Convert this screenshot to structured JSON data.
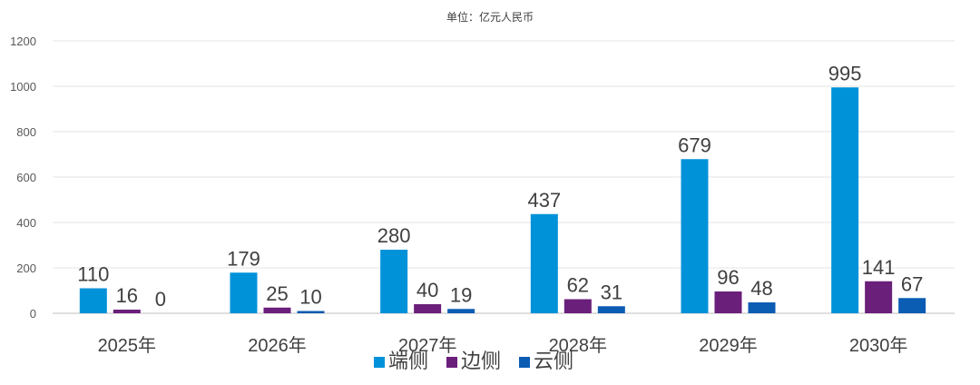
{
  "chart_data": {
    "type": "bar",
    "subtitle": "单位：亿元人民币",
    "categories": [
      "2025年",
      "2026年",
      "2027年",
      "2028年",
      "2029年",
      "2030年"
    ],
    "series": [
      {
        "name": "端侧",
        "color": "#0092d9",
        "values": [
          110,
          179,
          280,
          437,
          679,
          995
        ]
      },
      {
        "name": "边侧",
        "color": "#6a1f7a",
        "values": [
          16,
          25,
          40,
          62,
          96,
          141
        ]
      },
      {
        "name": "云侧",
        "color": "#0b5cb3",
        "values": [
          0,
          10,
          19,
          31,
          48,
          67
        ]
      }
    ],
    "ylim": [
      0,
      1200
    ],
    "yticks": [
      0,
      200,
      400,
      600,
      800,
      1000,
      1200
    ],
    "grid": true,
    "legend": "bottom"
  }
}
